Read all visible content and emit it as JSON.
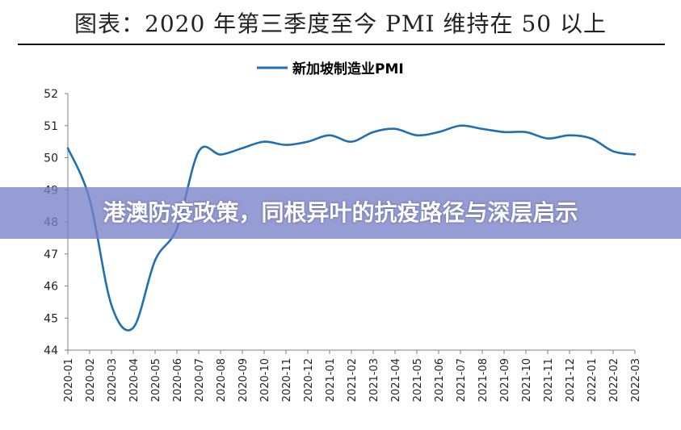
{
  "header": {
    "title": "图表：2020 年第三季度至今 PMI 维持在 50 以上"
  },
  "banner": {
    "text": "港澳防疫政策，同根异叶的抗疫路径与深层启示"
  },
  "colors": {
    "series_line": "#1f6fb4",
    "axis": "#808080",
    "banner": "#7882c8"
  },
  "chart_data": {
    "type": "line",
    "title": "",
    "xlabel": "",
    "ylabel": "",
    "ylim": [
      44,
      52
    ],
    "yticks": [
      44,
      45,
      46,
      47,
      48,
      49,
      50,
      51,
      52
    ],
    "grid": false,
    "legend_position": "top-center",
    "categories": [
      "2020-01",
      "2020-02",
      "2020-03",
      "2020-04",
      "2020-05",
      "2020-06",
      "2020-07",
      "2020-08",
      "2020-09",
      "2020-10",
      "2020-11",
      "2020-12",
      "2021-01",
      "2021-02",
      "2021-03",
      "2021-04",
      "2021-05",
      "2021-06",
      "2021-07",
      "2021-08",
      "2021-09",
      "2021-10",
      "2021-11",
      "2021-12",
      "2022-01",
      "2022-02",
      "2022-03"
    ],
    "series": [
      {
        "name": "新加坡制造业PMI",
        "values": [
          50.3,
          48.7,
          45.4,
          44.7,
          46.8,
          47.8,
          50.2,
          50.1,
          50.3,
          50.5,
          50.4,
          50.5,
          50.7,
          50.5,
          50.8,
          50.9,
          50.7,
          50.8,
          51.0,
          50.9,
          50.8,
          50.8,
          50.6,
          50.7,
          50.6,
          50.2,
          50.1
        ]
      }
    ]
  }
}
